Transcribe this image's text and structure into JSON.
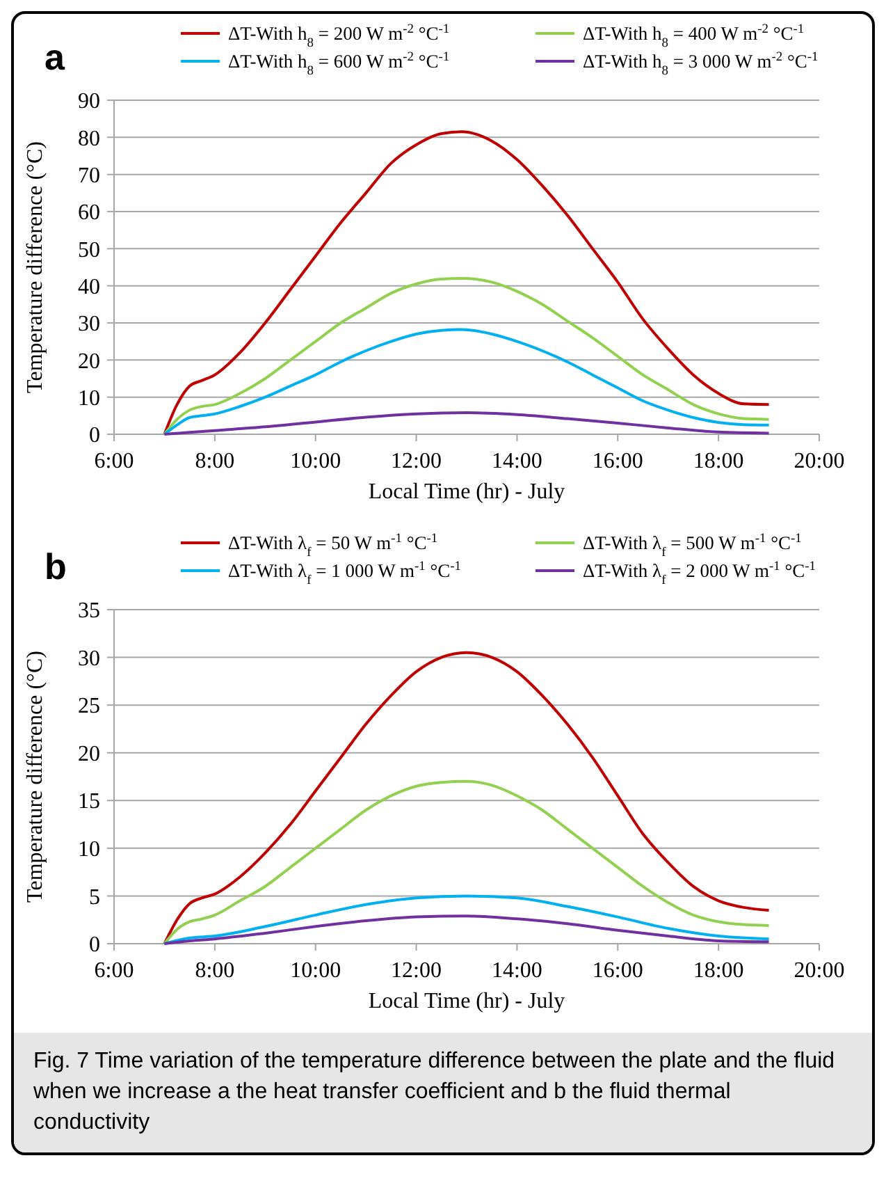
{
  "chart_data": [
    {
      "type": "line",
      "title": "a",
      "xlabel": "Local Time  (hr) - July",
      "ylabel": "Temperature difference (°C)",
      "xlim": [
        6,
        20
      ],
      "xticks": [
        {
          "value": 6,
          "label": "6:00"
        },
        {
          "value": 8,
          "label": "8:00"
        },
        {
          "value": 10,
          "label": "10:00"
        },
        {
          "value": 12,
          "label": "12:00"
        },
        {
          "value": 14,
          "label": "14:00"
        },
        {
          "value": 16,
          "label": "16:00"
        },
        {
          "value": 18,
          "label": "18:00"
        },
        {
          "value": 20,
          "label": "20:00"
        }
      ],
      "ylim": [
        0,
        90
      ],
      "yticks": [
        0,
        10,
        20,
        30,
        40,
        50,
        60,
        70,
        80,
        90
      ],
      "grid": "y",
      "legend": "top",
      "marker": "none",
      "line_style": "solid",
      "x": [
        7,
        7.25,
        7.5,
        7.75,
        8,
        8.5,
        9,
        9.5,
        10,
        10.5,
        11,
        11.5,
        12,
        12.5,
        12.9,
        13.5,
        14,
        14.5,
        15,
        15.5,
        16,
        16.5,
        17,
        17.5,
        18,
        18.5,
        19
      ],
      "series": [
        {
          "name": "ΔT-With h$_{8}$ = 200 W m$^{-2}$ °C$^{-1}$",
          "color": "#c00000",
          "values": [
            0,
            8,
            13,
            14.5,
            16,
            22,
            30,
            39,
            48,
            57,
            65,
            73,
            78,
            81,
            81.5,
            79,
            74,
            67,
            59,
            50,
            41,
            31,
            23,
            16,
            11,
            8.2,
            8
          ]
        },
        {
          "name": "ΔT-With h$_{8}$ = 400 W m$^{-2}$ °C$^{-1}$",
          "color": "#92d050",
          "values": [
            0,
            4,
            6.5,
            7.5,
            8,
            11,
            15,
            20,
            25,
            30,
            34,
            38,
            40.5,
            41.8,
            42,
            41,
            38.5,
            35,
            30.5,
            26,
            21,
            16,
            12,
            8,
            5.5,
            4.2,
            4
          ]
        },
        {
          "name": "ΔT-With h$_{8}$ = 600 W m$^{-2}$ °C$^{-1}$",
          "color": "#00b0f0",
          "values": [
            0,
            2.5,
            4.5,
            5,
            5.5,
            7.5,
            10,
            13,
            16,
            19.5,
            22.5,
            25,
            27,
            28,
            28.2,
            27,
            25,
            22.5,
            19.5,
            16,
            12.5,
            9,
            6.5,
            4.5,
            3.2,
            2.6,
            2.5
          ]
        },
        {
          "name": "ΔT-With h$_{8}$ = 3 000 W m$^{-2}$ °C$^{-1}$",
          "color": "#7030a0",
          "x": [
            7,
            7.5,
            8,
            9,
            10,
            11,
            12,
            13,
            14,
            15,
            16,
            17,
            18,
            19
          ],
          "values": [
            0,
            0.5,
            1,
            2,
            3.3,
            4.6,
            5.5,
            5.8,
            5.3,
            4.2,
            3,
            1.7,
            0.6,
            0.3
          ]
        }
      ]
    },
    {
      "type": "line",
      "title": "b",
      "xlabel": "Local Time  (hr) - July",
      "ylabel": "Temperature difference (°C)",
      "xlim": [
        6,
        20
      ],
      "xticks": [
        {
          "value": 6,
          "label": "6:00"
        },
        {
          "value": 8,
          "label": "8:00"
        },
        {
          "value": 10,
          "label": "10:00"
        },
        {
          "value": 12,
          "label": "12:00"
        },
        {
          "value": 14,
          "label": "14:00"
        },
        {
          "value": 16,
          "label": "16:00"
        },
        {
          "value": 18,
          "label": "18:00"
        },
        {
          "value": 20,
          "label": "20:00"
        }
      ],
      "ylim": [
        0,
        35
      ],
      "yticks": [
        0,
        5,
        10,
        15,
        20,
        25,
        30,
        35
      ],
      "grid": "y",
      "legend": "top",
      "marker": "none",
      "line_style": "solid",
      "x": [
        7,
        7.25,
        7.5,
        7.75,
        8,
        8.5,
        9,
        9.5,
        10,
        10.5,
        11,
        11.5,
        12,
        12.5,
        13,
        13.5,
        14,
        14.5,
        15,
        15.5,
        16,
        16.5,
        17,
        17.5,
        18,
        18.5,
        19
      ],
      "series": [
        {
          "name": "ΔT-With λ$_{f}$ = 50 W m$^{-1}$ °C$^{-1}$",
          "color": "#c00000",
          "values": [
            0,
            2.5,
            4.2,
            4.8,
            5.2,
            7,
            9.5,
            12.5,
            16,
            19.5,
            23,
            26,
            28.5,
            30,
            30.5,
            30,
            28.5,
            26,
            23,
            19.5,
            15.5,
            11.5,
            8.5,
            6,
            4.5,
            3.8,
            3.5
          ]
        },
        {
          "name": "ΔT-With λ$_{f}$ = 500 W m$^{-1}$ °C$^{-1}$",
          "color": "#92d050",
          "values": [
            0,
            1.5,
            2.3,
            2.6,
            3,
            4.5,
            6,
            8,
            10,
            12,
            14,
            15.5,
            16.5,
            16.9,
            17,
            16.6,
            15.5,
            14,
            12,
            10,
            8,
            6,
            4.3,
            3,
            2.3,
            2,
            1.9
          ]
        },
        {
          "name": "ΔT-With λ$_{f}$ = 1 000 W m$^{-1}$ °C$^{-1}$",
          "color": "#00b0f0",
          "x": [
            7,
            7.5,
            8,
            9,
            10,
            11,
            12,
            13,
            14,
            15,
            16,
            17,
            18,
            19
          ],
          "values": [
            0,
            0.6,
            0.8,
            1.8,
            3,
            4.1,
            4.8,
            5,
            4.8,
            3.9,
            2.8,
            1.6,
            0.8,
            0.5
          ]
        },
        {
          "name": "ΔT-With λ$_{f}$ = 2 000 W m$^{-1}$ °C$^{-1}$",
          "color": "#7030a0",
          "x": [
            7,
            7.5,
            8,
            9,
            10,
            11,
            12,
            13,
            14,
            15,
            16,
            17,
            18,
            19
          ],
          "values": [
            0,
            0.3,
            0.5,
            1.1,
            1.8,
            2.4,
            2.8,
            2.9,
            2.6,
            2.1,
            1.4,
            0.8,
            0.3,
            0.2
          ]
        }
      ],
      "annotations": [
        "Fig. 7 Time variation of the temperature difference between the plate and the fluid when we increase a the heat transfer coefficient and b the fluid thermal conductivity"
      ]
    }
  ]
}
